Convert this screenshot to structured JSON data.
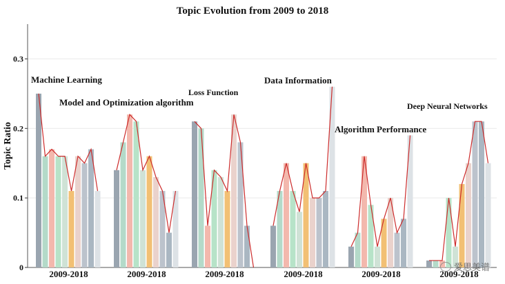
{
  "chart_data": {
    "type": "bar",
    "title": "Topic Evolution from 2009 to 2018",
    "ylabel": "Topic Ratio",
    "xlabel": "",
    "ylim": [
      0,
      0.35
    ],
    "yticks": [
      "0",
      "0.1",
      "0.2",
      "0.3"
    ],
    "ytick_values": [
      0,
      0.1,
      0.2,
      0.3
    ],
    "grid": true,
    "line_color": "#cc2b2b",
    "bar_colors": [
      "#9aa5b0",
      "#b4dac9",
      "#f3b8ad",
      "#b7e3c8",
      "#cfe2d6",
      "#f2c074",
      "#ead2cc",
      "#bcc3cc",
      "#aab7c2",
      "#dde2e6"
    ],
    "groups": [
      {
        "label": "2009-2018",
        "annotation": "Machine Learning",
        "values": [
          0.25,
          0.16,
          0.17,
          0.16,
          0.16,
          0.11,
          0.16,
          0.15,
          0.17,
          0.11
        ]
      },
      {
        "label": "2009-2018",
        "annotation": "Model and Optimization algorithm",
        "values": [
          0.14,
          0.18,
          0.22,
          0.21,
          0.14,
          0.16,
          0.13,
          0.11,
          0.05,
          0.11
        ]
      },
      {
        "label": "2009-2018",
        "annotation": "Loss Function",
        "values": [
          0.21,
          0.2,
          0.06,
          0.14,
          0.13,
          0.11,
          0.22,
          0.18,
          0.06,
          0.0
        ]
      },
      {
        "label": "2009-2018",
        "annotation": "Data Information",
        "values": [
          0.06,
          0.11,
          0.15,
          0.11,
          0.08,
          0.15,
          0.1,
          0.1,
          0.11,
          0.26
        ]
      },
      {
        "label": "2009-2018",
        "annotation": "Algorithm Performance",
        "values": [
          0.03,
          0.05,
          0.16,
          0.09,
          0.03,
          0.07,
          0.1,
          0.05,
          0.07,
          0.19
        ]
      },
      {
        "label": "2009-2018",
        "annotation": "Deep Neural Networks",
        "values": [
          0.01,
          0.01,
          0.01,
          0.1,
          0.03,
          0.12,
          0.15,
          0.21,
          0.21,
          0.15
        ]
      }
    ]
  },
  "watermark": {
    "text": "爱思美谱",
    "icon": "wechat-icon"
  }
}
